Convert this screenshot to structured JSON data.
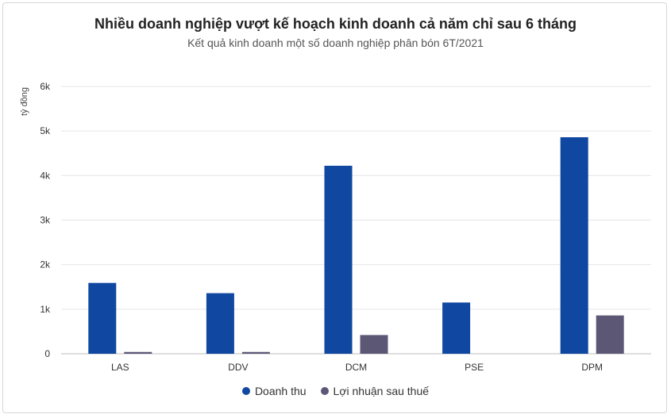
{
  "chart_data": {
    "type": "bar",
    "title": "Nhiều doanh nghiệp vượt kế hoạch kinh doanh cả năm chỉ sau 6 tháng",
    "subtitle": "Kết quả kinh doanh một số doanh nghiệp phân bón 6T/2021",
    "ylabel": "tỷ đồng",
    "xlabel": "",
    "categories": [
      "LAS",
      "DDV",
      "DCM",
      "PSE",
      "DPM"
    ],
    "series": [
      {
        "name": "Doanh thu",
        "color": "#0f47a1",
        "values": [
          1590,
          1360,
          4220,
          1150,
          4860
        ]
      },
      {
        "name": "Lợi nhuận sau thuế",
        "color": "#5d5776",
        "values": [
          40,
          40,
          420,
          0,
          860
        ]
      }
    ],
    "ylim": [
      0,
      6000
    ],
    "yticks": [
      0,
      1000,
      2000,
      3000,
      4000,
      5000,
      6000
    ],
    "ytick_labels": [
      "0",
      "1k",
      "2k",
      "3k",
      "4k",
      "5k",
      "6k"
    ],
    "grid": true,
    "legend_position": "bottom-center"
  }
}
